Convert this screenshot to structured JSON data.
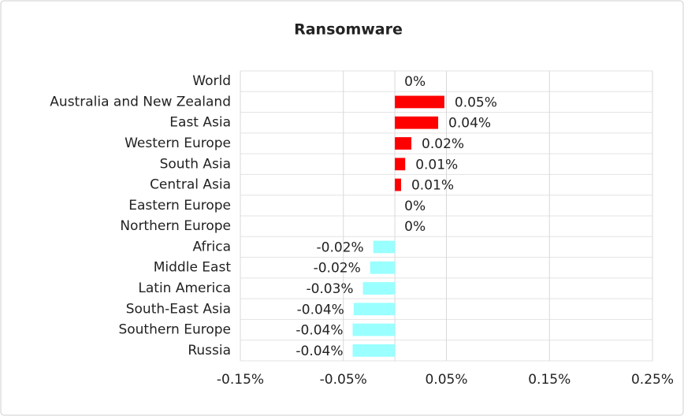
{
  "chart_data": {
    "type": "hbar",
    "title": "Ransomware",
    "categories": [
      "World",
      "Australia and New Zealand",
      "East Asia",
      "Western Europe",
      "South Asia",
      "Central Asia",
      "Eastern Europe",
      "Northern Europe",
      "Africa",
      "Middle East",
      "Latin America",
      "South-East Asia",
      "Southern Europe",
      "Russia"
    ],
    "values": [
      0,
      0.048,
      0.042,
      0.016,
      0.01,
      0.006,
      0,
      0,
      -0.021,
      -0.024,
      -0.031,
      -0.04,
      -0.041,
      -0.041
    ],
    "value_labels": [
      "0%",
      "0.05%",
      "0.04%",
      "0.02%",
      "0.01%",
      "0.01%",
      "0%",
      "0%",
      "-0.02%",
      "-0.02%",
      "-0.03%",
      "-0.04%",
      "-0.04%",
      "-0.04%"
    ],
    "color": "#ff0000",
    "negative_color": "#99ffff",
    "xlim": [
      -0.15,
      0.25
    ],
    "xticks": [
      {
        "value": -0.15,
        "label": "-0.15%"
      },
      {
        "value": -0.05,
        "label": "-0.05%"
      },
      {
        "value": 0.05,
        "label": "0.05%"
      },
      {
        "value": 0.15,
        "label": "0.15%"
      },
      {
        "value": 0.25,
        "label": "0.25%"
      }
    ],
    "grid": true
  }
}
